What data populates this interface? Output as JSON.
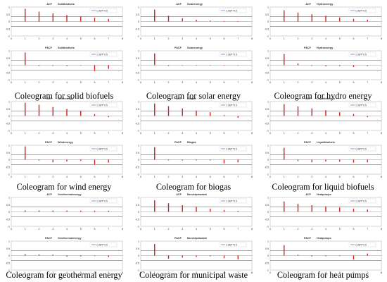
{
  "page": {
    "background": "#ffffff"
  },
  "style": {
    "bar_color": "#d42020",
    "band_color": "#3a4fb0",
    "zero_line_color": "#999999"
  },
  "legend_label": "1.96/T^0.5",
  "panels": [
    {
      "caption": "Coleogram for solid biofuels",
      "chart_data": [
        {
          "type": "bar",
          "title": "ACF",
          "series_name": "Solidbiofuels",
          "x": [
            1,
            2,
            3,
            4,
            5,
            6,
            7
          ],
          "values": [
            0.88,
            0.68,
            0.56,
            0.44,
            0.34,
            0.26,
            0.18
          ],
          "xlim": [
            0,
            8
          ],
          "ylim": [
            -1,
            1
          ],
          "yticks": [
            "1",
            "0.5",
            "0",
            "-0.5",
            "-1"
          ],
          "xticks": [
            "0",
            "1",
            "2",
            "3",
            "4",
            "5",
            "6",
            "7",
            "8"
          ],
          "band": 0.35
        },
        {
          "type": "bar",
          "title": "PACF",
          "series_name": "Solidbiofuels",
          "x": [
            1,
            2,
            3,
            4,
            5,
            6,
            7
          ],
          "values": [
            0.88,
            -0.05,
            -0.04,
            -0.06,
            -0.03,
            -0.4,
            -0.25
          ],
          "xlim": [
            0,
            8
          ],
          "ylim": [
            -1,
            1
          ],
          "yticks": [
            "1",
            "0.5",
            "0",
            "-0.5",
            "-1"
          ],
          "xticks": [
            "0",
            "1",
            "2",
            "3",
            "4",
            "5",
            "6",
            "7",
            "8"
          ],
          "band": 0.35
        }
      ]
    },
    {
      "caption": "Coleogram for solar energy",
      "chart_data": [
        {
          "type": "bar",
          "title": "ACF",
          "series_name": "Solarenergy",
          "x": [
            1,
            2,
            3,
            4,
            5,
            6,
            7
          ],
          "values": [
            0.82,
            0.4,
            0.22,
            0.12,
            0.06,
            0.03,
            0.02
          ],
          "xlim": [
            0,
            8
          ],
          "ylim": [
            -1,
            1
          ],
          "yticks": [
            "1",
            "0.5",
            "0",
            "-0.5",
            "-1"
          ],
          "xticks": [
            "0",
            "1",
            "2",
            "3",
            "4",
            "5",
            "6",
            "7",
            "8"
          ],
          "band": 0.35
        },
        {
          "type": "bar",
          "title": "PACF",
          "series_name": "Solarenergy",
          "x": [
            1,
            2,
            3,
            4,
            5,
            6,
            7
          ],
          "values": [
            0.82,
            -0.05,
            -0.03,
            -0.02,
            -0.02,
            -0.03,
            -0.02
          ],
          "xlim": [
            0,
            8
          ],
          "ylim": [
            -1,
            1
          ],
          "yticks": [
            "1",
            "0.5",
            "0",
            "-0.5",
            "-1"
          ],
          "xticks": [
            "0",
            "1",
            "2",
            "3",
            "4",
            "5",
            "6",
            "7",
            "8"
          ],
          "band": 0.35
        }
      ]
    },
    {
      "caption": "Coleogram for hydro energy",
      "chart_data": [
        {
          "type": "bar",
          "title": "ACF",
          "series_name": "Hydroenergy",
          "x": [
            1,
            2,
            3,
            4,
            5,
            6,
            7
          ],
          "values": [
            0.78,
            0.62,
            0.5,
            0.4,
            0.28,
            0.18,
            0.12
          ],
          "xlim": [
            0,
            8
          ],
          "ylim": [
            -1,
            1
          ],
          "yticks": [
            "1",
            "0.5",
            "0",
            "-0.5",
            "-1"
          ],
          "xticks": [
            "0",
            "1",
            "2",
            "3",
            "4",
            "5",
            "6",
            "7",
            "8"
          ],
          "band": 0.35
        },
        {
          "type": "bar",
          "title": "PACF",
          "series_name": "Hydroenergy",
          "x": [
            1,
            2,
            3,
            4,
            5,
            6,
            7
          ],
          "values": [
            0.78,
            0.12,
            -0.04,
            -0.08,
            -0.06,
            -0.12,
            -0.06
          ],
          "xlim": [
            0,
            8
          ],
          "ylim": [
            -1,
            1
          ],
          "yticks": [
            "1",
            "0.5",
            "0",
            "-0.5",
            "-1"
          ],
          "xticks": [
            "0",
            "1",
            "2",
            "3",
            "4",
            "5",
            "6",
            "7",
            "8"
          ],
          "band": 0.35
        }
      ]
    },
    {
      "caption": "Coleogram for wind energy",
      "chart_data": [
        {
          "type": "bar",
          "title": "ACF",
          "series_name": "Windenergy",
          "x": [
            1,
            2,
            3,
            4,
            5,
            6,
            7
          ],
          "values": [
            0.92,
            0.78,
            0.62,
            0.48,
            0.34,
            0.12,
            -0.08
          ],
          "xlim": [
            0,
            8
          ],
          "ylim": [
            -1,
            1
          ],
          "yticks": [
            "1",
            "0.5",
            "0",
            "-0.5",
            "-1"
          ],
          "xticks": [
            "0",
            "1",
            "2",
            "3",
            "4",
            "5",
            "6",
            "7",
            "8"
          ],
          "band": 0.35
        },
        {
          "type": "bar",
          "title": "PACF",
          "series_name": "Windenergy",
          "x": [
            1,
            2,
            3,
            4,
            5,
            6,
            7
          ],
          "values": [
            0.92,
            -0.06,
            -0.18,
            -0.12,
            -0.08,
            -0.32,
            -0.2
          ],
          "xlim": [
            0,
            8
          ],
          "ylim": [
            -1,
            1
          ],
          "yticks": [
            "1",
            "0.5",
            "0",
            "-0.5",
            "-1"
          ],
          "xticks": [
            "0",
            "1",
            "2",
            "3",
            "4",
            "5",
            "6",
            "7",
            "8"
          ],
          "band": 0.35
        }
      ]
    },
    {
      "caption": "Coleogram for biogas",
      "chart_data": [
        {
          "type": "bar",
          "title": "ACF",
          "series_name": "Biogas",
          "x": [
            1,
            2,
            3,
            4,
            5,
            6,
            7
          ],
          "values": [
            0.86,
            0.68,
            0.52,
            0.38,
            0.26,
            0.06,
            -0.12
          ],
          "xlim": [
            0,
            8
          ],
          "ylim": [
            -1,
            1
          ],
          "yticks": [
            "1",
            "0.5",
            "0",
            "-0.5",
            "-1"
          ],
          "xticks": [
            "0",
            "1",
            "2",
            "3",
            "4",
            "5",
            "6",
            "7",
            "8"
          ],
          "band": 0.35
        },
        {
          "type": "bar",
          "title": "PACF",
          "series_name": "Biogas",
          "x": [
            1,
            2,
            3,
            4,
            5,
            6,
            7
          ],
          "values": [
            0.86,
            -0.05,
            -0.06,
            -0.05,
            -0.05,
            -0.25,
            -0.18
          ],
          "xlim": [
            0,
            8
          ],
          "ylim": [
            -1,
            1
          ],
          "yticks": [
            "1",
            "0.5",
            "0",
            "-0.5",
            "-1"
          ],
          "xticks": [
            "0",
            "1",
            "2",
            "3",
            "4",
            "5",
            "6",
            "7",
            "8"
          ],
          "band": 0.35
        }
      ]
    },
    {
      "caption": "Coleogram for liquid biofuels",
      "chart_data": [
        {
          "type": "bar",
          "title": "ACF",
          "series_name": "Liquidbiofuels",
          "x": [
            1,
            2,
            3,
            4,
            5,
            6,
            7
          ],
          "values": [
            0.82,
            0.66,
            0.52,
            0.4,
            0.26,
            0.14,
            -0.08
          ],
          "xlim": [
            0,
            8
          ],
          "ylim": [
            -1,
            1
          ],
          "yticks": [
            "1",
            "0.5",
            "0",
            "-0.5",
            "-1"
          ],
          "xticks": [
            "0",
            "1",
            "2",
            "3",
            "4",
            "5",
            "6",
            "7",
            "8"
          ],
          "band": 0.35
        },
        {
          "type": "bar",
          "title": "PACF",
          "series_name": "Liquidbiofuels",
          "x": [
            1,
            2,
            3,
            4,
            5,
            6,
            7
          ],
          "values": [
            0.82,
            -0.1,
            -0.18,
            -0.12,
            -0.14,
            -0.2,
            -0.18
          ],
          "xlim": [
            0,
            8
          ],
          "ylim": [
            -1,
            1
          ],
          "yticks": [
            "1",
            "0.5",
            "0",
            "-0.5",
            "-1"
          ],
          "xticks": [
            "0",
            "1",
            "2",
            "3",
            "4",
            "5",
            "6",
            "7",
            "8"
          ],
          "band": 0.35
        }
      ]
    },
    {
      "caption": "Coleogram for geothermal energy",
      "chart_data": [
        {
          "type": "bar",
          "title": "ACF",
          "series_name": "Geothermalenergy",
          "x": [
            1,
            2,
            3,
            4,
            5,
            6,
            7
          ],
          "values": [
            0.1,
            0.1,
            0.09,
            0.09,
            0.08,
            0.08,
            0.07
          ],
          "xlim": [
            0,
            8
          ],
          "ylim": [
            -1,
            1
          ],
          "yticks": [
            "1",
            "0.5",
            "0",
            "-0.5",
            "-1"
          ],
          "xticks": [
            "0",
            "1",
            "2",
            "3",
            "4",
            "5",
            "6",
            "7",
            "8"
          ],
          "band": 0.35
        },
        {
          "type": "bar",
          "title": "PACF",
          "series_name": "Geothermalenergy",
          "x": [
            1,
            2,
            3,
            4,
            5,
            6,
            7
          ],
          "values": [
            0.1,
            0.08,
            0.06,
            -0.08,
            -0.06,
            -0.04,
            -0.1
          ],
          "xlim": [
            0,
            8
          ],
          "ylim": [
            -1,
            1
          ],
          "yticks": [
            "1",
            "0.5",
            "0",
            "-0.5",
            "-1"
          ],
          "xticks": [
            "0",
            "1",
            "2",
            "3",
            "4",
            "5",
            "6",
            "7",
            "8"
          ],
          "band": 0.35
        }
      ]
    },
    {
      "caption": "Coleogram for municipal waste",
      "chart_data": [
        {
          "type": "bar",
          "title": "ACF",
          "series_name": "Municipalwaste",
          "x": [
            1,
            2,
            3,
            4,
            5,
            6,
            7
          ],
          "values": [
            0.8,
            0.6,
            0.46,
            0.34,
            0.22,
            0.12,
            0.06
          ],
          "xlim": [
            0,
            8
          ],
          "ylim": [
            -1,
            1
          ],
          "yticks": [
            "1",
            "0.5",
            "0",
            "-0.5",
            "-1"
          ],
          "xticks": [
            "0",
            "1",
            "2",
            "3",
            "4",
            "5",
            "6",
            "7",
            "8"
          ],
          "band": 0.35
        },
        {
          "type": "bar",
          "title": "PACF",
          "series_name": "Municipalwaste",
          "x": [
            1,
            2,
            3,
            4,
            5,
            6,
            7
          ],
          "values": [
            0.8,
            -0.22,
            -0.14,
            -0.1,
            -0.05,
            -0.18,
            -0.26
          ],
          "xlim": [
            0,
            8
          ],
          "ylim": [
            -1,
            1
          ],
          "yticks": [
            "1",
            "0.5",
            "0",
            "-0.5",
            "-1"
          ],
          "xticks": [
            "0",
            "1",
            "2",
            "3",
            "4",
            "5",
            "6",
            "7",
            "8"
          ],
          "band": 0.35
        }
      ]
    },
    {
      "caption": "Coleogram for heat pumps",
      "chart_data": [
        {
          "type": "bar",
          "title": "ACF",
          "series_name": "Heatpumps",
          "x": [
            1,
            2,
            3,
            4,
            5,
            6,
            7
          ],
          "values": [
            0.72,
            0.56,
            0.46,
            0.38,
            0.3,
            0.22,
            0.16
          ],
          "xlim": [
            0,
            8
          ],
          "ylim": [
            -1,
            1
          ],
          "yticks": [
            "1",
            "0.5",
            "0",
            "-0.5",
            "-1"
          ],
          "xticks": [
            "0",
            "1",
            "2",
            "3",
            "4",
            "5",
            "6",
            "7",
            "8"
          ],
          "band": 0.35
        },
        {
          "type": "bar",
          "title": "PACF",
          "series_name": "Heatpumps",
          "x": [
            1,
            2,
            3,
            4,
            5,
            6,
            7
          ],
          "values": [
            0.72,
            0.06,
            -0.06,
            -0.05,
            -0.04,
            -0.28,
            0.14
          ],
          "xlim": [
            0,
            8
          ],
          "ylim": [
            -1,
            1
          ],
          "yticks": [
            "1",
            "0.5",
            "0",
            "-0.5",
            "-1"
          ],
          "xticks": [
            "0",
            "1",
            "2",
            "3",
            "4",
            "5",
            "6",
            "7",
            "8"
          ],
          "band": 0.35
        }
      ]
    }
  ]
}
